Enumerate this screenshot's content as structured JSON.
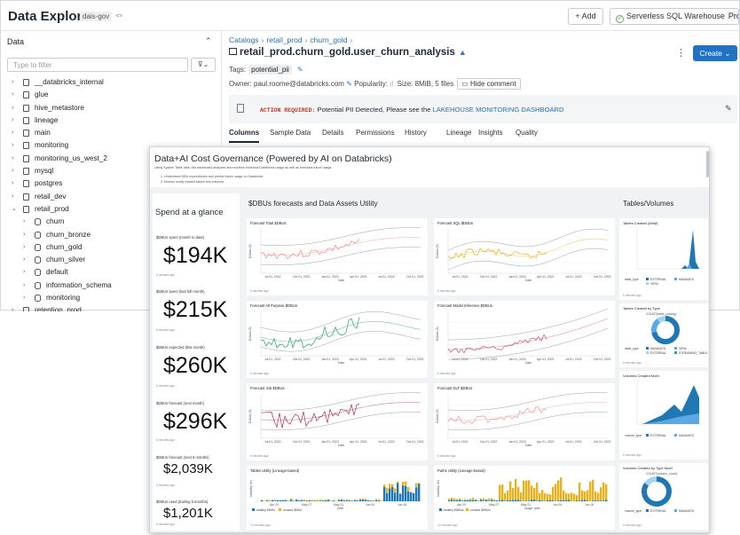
{
  "app": {
    "title": "Data Explorer",
    "workspace": "dais-gov"
  },
  "header": {
    "add_label": "Add",
    "warehouse_label": "Serverless SQL Warehouse",
    "warehouse_tier": "Pro"
  },
  "sidebar": {
    "header": "Data",
    "filter_placeholder": "Type to filter",
    "items": [
      {
        "label": "__databricks_internal",
        "level": 0,
        "type": "catalog",
        "expanded": false
      },
      {
        "label": "glue",
        "level": 0,
        "type": "catalog",
        "expanded": false
      },
      {
        "label": "hive_metastore",
        "level": 0,
        "type": "catalog",
        "expanded": false
      },
      {
        "label": "lineage",
        "level": 0,
        "type": "catalog",
        "expanded": false
      },
      {
        "label": "main",
        "level": 0,
        "type": "catalog",
        "expanded": false
      },
      {
        "label": "monitoring",
        "level": 0,
        "type": "catalog",
        "expanded": false
      },
      {
        "label": "monitoring_us_west_2",
        "level": 0,
        "type": "catalog",
        "expanded": false
      },
      {
        "label": "mysql",
        "level": 0,
        "type": "catalog",
        "expanded": false
      },
      {
        "label": "postgres",
        "level": 0,
        "type": "catalog",
        "expanded": false
      },
      {
        "label": "retail_dev",
        "level": 0,
        "type": "catalog",
        "expanded": false
      },
      {
        "label": "retail_prod",
        "level": 0,
        "type": "catalog",
        "expanded": true
      },
      {
        "label": "churn",
        "level": 1,
        "type": "schema",
        "expanded": false
      },
      {
        "label": "churn_bronze",
        "level": 1,
        "type": "schema",
        "expanded": false
      },
      {
        "label": "churn_gold",
        "level": 1,
        "type": "schema",
        "expanded": false
      },
      {
        "label": "churn_silver",
        "level": 1,
        "type": "schema",
        "expanded": false
      },
      {
        "label": "default",
        "level": 1,
        "type": "schema",
        "expanded": false
      },
      {
        "label": "information_schema",
        "level": 1,
        "type": "schema",
        "expanded": false
      },
      {
        "label": "monitoring",
        "level": 1,
        "type": "schema",
        "expanded": false
      },
      {
        "label": "retention_prod",
        "level": 0,
        "type": "catalog",
        "expanded": false
      }
    ]
  },
  "breadcrumb": [
    "Catalogs",
    "retail_prod",
    "churn_gold"
  ],
  "table": {
    "name": "retail_prod.churn_gold.user_churn_analysis",
    "create_label": "Create",
    "tags_label": "Tags:",
    "tag": "potential_pii",
    "owner": "Owner: paul.roome@databricks.com",
    "popularity": "Popularity:",
    "size": "Size: 8MiB, 5 files",
    "hide_comment": "Hide comment",
    "alert_prefix": "ACTION REQUIRED:",
    "alert_text": " Potential PII Detected, Please see the ",
    "alert_link": "LAKEHOUSE MONITORING DASHBOARD",
    "tabs": [
      "Columns",
      "Sample Data",
      "Details",
      "Permissions",
      "History",
      "Lineage",
      "Insights",
      "Quality"
    ],
    "active_tab": "Columns"
  },
  "dashboard": {
    "title": "Data+AI Cost Governance (Powered by AI on Databricks)",
    "desc": "Using System Table data, this dashboard analyzes and monitors historical Databricks usage as well as forecasts future usage.",
    "desc_items": [
      "1. Understand DBU expenditures and predict future usage on Databricks",
      "2. Monitor newly created tables and volumes"
    ],
    "sections": {
      "spend": "Spend at a glance",
      "forecasts": "$DBUs forecasts and Data Assets Utility",
      "tables": "Tables/Volumes"
    },
    "kpis": [
      {
        "label": "$DBUs spent (month to date)",
        "value": "$194K",
        "ago": "6 minutes ago"
      },
      {
        "label": "$DBUs spent (last full month)",
        "value": "$215K",
        "ago": "6 minutes ago"
      },
      {
        "label": "$DBUs expected (this month)",
        "value": "$260K",
        "ago": "6 minutes ago"
      },
      {
        "label": "$DBUs forecast (next month)",
        "value": "$296K",
        "ago": "6 minutes ago"
      },
      {
        "label": "$DBUs forecast (next 6 months)",
        "value": "$2,039K",
        "ago": "6 minutes ago"
      },
      {
        "label": "$DBUs used (trailing 6 months)",
        "value": "$1,201K",
        "ago": "6 minutes ago"
      }
    ],
    "charts": [
      {
        "title": "Forecast Total $DBUs",
        "color": "#e8908e",
        "ylabel": "Dollars ($)",
        "xlabel": "Date",
        "ticks": [
          "Jul 01, 2022",
          "Oct 01, 2022",
          "Jan 01, 2023",
          "Apr 01, 2023",
          "Jul 01, 2023",
          "Oct 01, 2023"
        ],
        "ago": "6 minutes ago"
      },
      {
        "title": "Forecast SQL $DBUs",
        "color": "#e8b21f",
        "ylabel": "Dollars ($)",
        "xlabel": "Date",
        "ticks": [
          "Jul 01, 2022",
          "Oct 01, 2022",
          "Jan 01, 2023",
          "Apr 01, 2023",
          "Jul 01, 2023",
          "Oct 01, 2023"
        ],
        "ago": "6 minutes ago"
      },
      {
        "title": "Forecast All Purpose $DBUs",
        "color": "#26a06a",
        "ylabel": "Dollars ($)",
        "xlabel": "Date",
        "ticks": [
          "Jul 01, 2022",
          "Oct 01, 2022",
          "Jan 01, 2023",
          "Apr 01, 2023",
          "Jul 01, 2023",
          "Oct 01, 2023"
        ],
        "ago": "6 minutes ago"
      },
      {
        "title": "Forecast Model Inference $DBUs",
        "color": "#c9566a",
        "ylabel": "Dollars ($)",
        "xlabel": "Date",
        "ticks": [
          "Jul 01, 2022",
          "Oct 01, 2022",
          "Jan 01, 2023",
          "Apr 01, 2023",
          "Jul 01, 2023",
          "Oct 01, 2023"
        ],
        "ago": "6 minutes ago"
      },
      {
        "title": "Forecast Job $DBUs",
        "color": "#a8324f",
        "ylabel": "Dollars ($)",
        "xlabel": "Date",
        "ticks": [
          "Jul 01, 2022",
          "Oct 01, 2022",
          "Jan 01, 2023",
          "Apr 01, 2023",
          "Jul 01, 2023",
          "Oct 01, 2023"
        ],
        "ago": "6 minutes ago"
      },
      {
        "title": "Forecast DLT $DBUs",
        "color": "#e89a9a",
        "ylabel": "Dollars ($)",
        "xlabel": "Date",
        "ticks": [
          "Jul 01, 2022",
          "Oct 01, 2022",
          "Jan 01, 2023",
          "Apr 01, 2023",
          "Jul 01, 2023",
          "Oct 01, 2023"
        ],
        "ago": "6 minutes ago"
      }
    ],
    "utility": [
      {
        "title": "Tables Utility (Lineage-based)",
        "ylabel": "Usability (%)",
        "xlabel": "Date",
        "ticks": [
          "Apr 20",
          "May 07",
          "May 21",
          "Jun 04",
          "Jun 18"
        ],
        "legend": [
          "healthy $DBU",
          "unused $DBU"
        ],
        "colors": [
          "#1f77b4",
          "#e8b21f"
        ],
        "ago": "12 minutes ago"
      },
      {
        "title": "Paths Utility (Lineage-based)",
        "ylabel": "Usability (%)",
        "xlabel": "usage_date",
        "ticks": [
          "Apr 20",
          "May 07",
          "May 21",
          "Jun 04",
          "Jun 18"
        ],
        "legend": [
          "healthy $DBUs",
          "unused $DBUs"
        ],
        "colors": [
          "#1f77b4",
          "#e8b21f"
        ],
        "ago": "12 minutes ago"
      }
    ],
    "right": [
      {
        "title": "Tables Created (MoM)",
        "legend_title": "table_type",
        "legend": [
          "EXTERNAL",
          "MANAGED",
          "VIEW"
        ],
        "ago": "6 minutes ago"
      },
      {
        "title": "Tables Created by Type",
        "subtitle": "COUNT(table_catalog)",
        "legend_title": "table_type",
        "legend": [
          "MANAGED",
          "VIEW",
          "EXTERNAL",
          "STREAMING_TABLE"
        ],
        "ago": "6 minutes ago"
      },
      {
        "title": "Volumes Created MoM",
        "legend_title": "volume_type",
        "legend": [
          "EXTERNAL",
          "MANAGED"
        ],
        "ago": "6 minutes ago"
      },
      {
        "title": "Volumes Created by Type MoM",
        "subtitle": "COUNT(volume_count)",
        "legend_title": "volume_type",
        "legend": [
          "EXTERNAL",
          "MANAGED"
        ],
        "ago": "6 minutes ago"
      }
    ]
  }
}
